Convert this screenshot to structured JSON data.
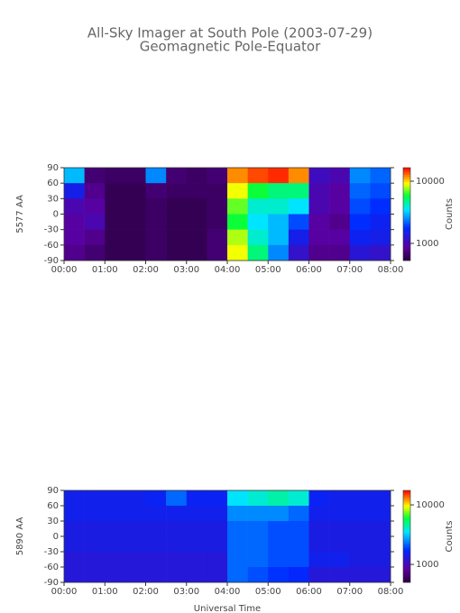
{
  "title": "All-Sky Imager at South Pole (2003-07-29)",
  "subtitle": "Geomagnetic Pole-Equator",
  "chart_data": [
    {
      "type": "heatmap",
      "ylabel": "5577 AA",
      "clabel": "Counts",
      "log_color": true,
      "xbins": [
        0,
        0.5,
        1,
        1.5,
        2,
        2.5,
        3,
        3.5,
        4,
        4.5,
        5,
        5.5,
        6,
        6.5,
        7,
        7.5,
        8
      ],
      "ybins": [
        90,
        60,
        30,
        0,
        -30,
        -60,
        -90
      ],
      "z": [
        [
          3000,
          700,
          650,
          650,
          2500,
          700,
          650,
          700,
          12000,
          14000,
          15000,
          12000,
          1100,
          1000,
          2500,
          2200
        ],
        [
          1500,
          800,
          600,
          600,
          700,
          650,
          650,
          650,
          9000,
          6000,
          5000,
          5000,
          1000,
          900,
          2200,
          2000
        ],
        [
          1000,
          900,
          600,
          600,
          650,
          600,
          600,
          650,
          7000,
          4000,
          4000,
          3500,
          1000,
          900,
          2000,
          1800
        ],
        [
          900,
          1000,
          600,
          600,
          650,
          600,
          600,
          650,
          6000,
          3500,
          3000,
          2000,
          900,
          800,
          1800,
          1600
        ],
        [
          900,
          800,
          600,
          600,
          650,
          600,
          600,
          700,
          8000,
          4000,
          3000,
          1500,
          900,
          900,
          1600,
          1500
        ],
        [
          800,
          700,
          600,
          600,
          650,
          600,
          600,
          700,
          9000,
          5000,
          2500,
          1200,
          800,
          800,
          1300,
          1200
        ]
      ],
      "xlim": [
        0,
        8
      ],
      "xticks": [
        {
          "value": 0,
          "label": "00:00"
        },
        {
          "value": 1,
          "label": "01:00"
        },
        {
          "value": 2,
          "label": "02:00"
        },
        {
          "value": 3,
          "label": "03:00"
        },
        {
          "value": 4,
          "label": "04:00"
        },
        {
          "value": 5,
          "label": "05:00"
        },
        {
          "value": 6,
          "label": "06:00"
        },
        {
          "value": 7,
          "label": "07:00"
        },
        {
          "value": 8,
          "label": "08:00"
        }
      ],
      "ylim": [
        -90,
        90
      ],
      "yticks": [
        90,
        60,
        30,
        0,
        -30,
        -60,
        -90
      ],
      "clim": [
        530,
        16500
      ],
      "cticks": [
        1000,
        10000
      ]
    },
    {
      "type": "heatmap",
      "ylabel": "5890 AA",
      "clabel": "Counts",
      "xlabel": "Universal Time",
      "log_color": true,
      "xbins": [
        0,
        0.5,
        1,
        1.5,
        2,
        2.5,
        3,
        3.5,
        4,
        4.5,
        5,
        5.5,
        6,
        6.5,
        7,
        7.5,
        8
      ],
      "ybins": [
        90,
        60,
        30,
        0,
        -30,
        -60,
        -90
      ],
      "z": [
        [
          1500,
          1500,
          1500,
          1500,
          1600,
          2200,
          1600,
          1600,
          3500,
          4000,
          4500,
          4000,
          1600,
          1500,
          1500,
          1500
        ],
        [
          1500,
          1500,
          1500,
          1500,
          1500,
          1500,
          1500,
          1500,
          2500,
          2500,
          2500,
          2200,
          1500,
          1500,
          1500,
          1500
        ],
        [
          1400,
          1400,
          1400,
          1400,
          1400,
          1400,
          1400,
          1400,
          2200,
          2200,
          2000,
          2000,
          1400,
          1400,
          1400,
          1400
        ],
        [
          1400,
          1400,
          1400,
          1400,
          1400,
          1400,
          1400,
          1400,
          2200,
          2200,
          2000,
          2000,
          1400,
          1400,
          1400,
          1400
        ],
        [
          1300,
          1300,
          1300,
          1300,
          1300,
          1300,
          1300,
          1300,
          2200,
          2200,
          2000,
          2000,
          1500,
          1500,
          1400,
          1400
        ],
        [
          1300,
          1300,
          1300,
          1300,
          1300,
          1300,
          1300,
          1300,
          2200,
          2000,
          1800,
          1700,
          1300,
          1300,
          1300,
          1300
        ]
      ],
      "xlim": [
        0,
        8
      ],
      "xticks": [
        {
          "value": 0,
          "label": "00:00"
        },
        {
          "value": 1,
          "label": "01:00"
        },
        {
          "value": 2,
          "label": "02:00"
        },
        {
          "value": 3,
          "label": "03:00"
        },
        {
          "value": 4,
          "label": "04:00"
        },
        {
          "value": 5,
          "label": "05:00"
        },
        {
          "value": 6,
          "label": "06:00"
        },
        {
          "value": 7,
          "label": "07:00"
        },
        {
          "value": 8,
          "label": "08:00"
        }
      ],
      "ylim": [
        -90,
        90
      ],
      "yticks": [
        90,
        60,
        30,
        0,
        -30,
        -60,
        -90
      ],
      "clim": [
        500,
        17500
      ],
      "cticks": [
        1000,
        10000
      ]
    }
  ]
}
